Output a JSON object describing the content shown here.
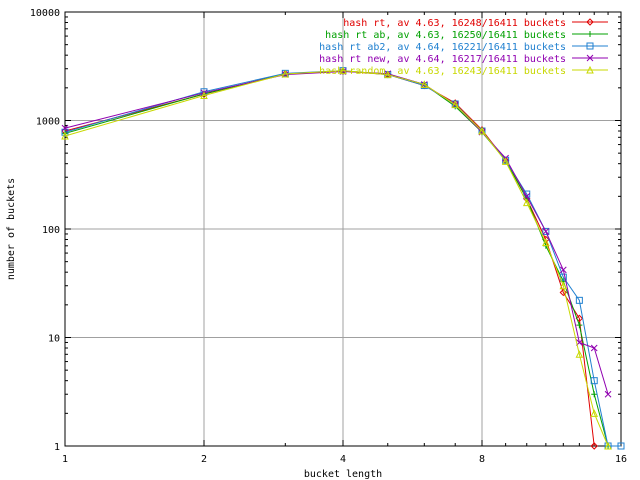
{
  "chart_data": {
    "type": "line",
    "title": "",
    "xlabel": "bucket length",
    "ylabel": "number of buckets",
    "x_scale": "log2",
    "y_scale": "log10",
    "xlim": [
      1,
      16
    ],
    "ylim": [
      1,
      10000
    ],
    "x_ticks": [
      1,
      2,
      4,
      8,
      16
    ],
    "x_tick_labels": [
      "1",
      "2",
      "4",
      "8",
      "16"
    ],
    "y_ticks": [
      1,
      10,
      100,
      1000,
      10000
    ],
    "y_tick_labels": [
      "1",
      "10",
      "100",
      "1000",
      "10000"
    ],
    "grid": true,
    "legend_position": "top-right",
    "series": [
      {
        "name": "hash rt, av 4.63, 16248/16411 buckets",
        "color": "#e00000",
        "marker": "diamond",
        "x": [
          1,
          2,
          3,
          4,
          5,
          6,
          7,
          8,
          9,
          10,
          11,
          12,
          13,
          14
        ],
        "y": [
          800,
          1750,
          2700,
          2850,
          2650,
          2100,
          1450,
          820,
          430,
          190,
          80,
          26,
          15,
          1
        ]
      },
      {
        "name": "hash rt ab, av 4.63, 16250/16411 buckets",
        "color": "#00a000",
        "marker": "plus",
        "x": [
          1,
          2,
          3,
          4,
          5,
          6,
          7,
          8,
          9,
          10,
          11,
          12,
          13,
          14,
          15
        ],
        "y": [
          760,
          1760,
          2680,
          2850,
          2680,
          2150,
          1350,
          780,
          430,
          190,
          70,
          33,
          13,
          3,
          1
        ]
      },
      {
        "name": "hash rt ab2, av 4.64, 16221/16411 buckets",
        "color": "#2080d0",
        "marker": "square",
        "x": [
          1,
          2,
          3,
          4,
          5,
          6,
          7,
          8,
          9,
          10,
          11,
          12,
          13,
          14,
          15,
          16
        ],
        "y": [
          780,
          1840,
          2720,
          2880,
          2650,
          2100,
          1420,
          800,
          430,
          210,
          95,
          36,
          22,
          4,
          1,
          1
        ]
      },
      {
        "name": "hash rt new, av 4.64, 16217/16411 buckets",
        "color": "#9000b0",
        "marker": "cross",
        "x": [
          1,
          2,
          3,
          4,
          5,
          6,
          7,
          8,
          9,
          10,
          11,
          12,
          13,
          14,
          15
        ],
        "y": [
          850,
          1800,
          2650,
          2830,
          2700,
          2150,
          1400,
          780,
          450,
          200,
          95,
          42,
          9,
          8,
          3
        ]
      },
      {
        "name": "hash random, av 4.63, 16243/16411 buckets",
        "color": "#c8d800",
        "marker": "triangle",
        "x": [
          1,
          2,
          3,
          4,
          5,
          6,
          7,
          8,
          9,
          10,
          11,
          12,
          13,
          14,
          15
        ],
        "y": [
          720,
          1700,
          2680,
          2880,
          2650,
          2150,
          1400,
          800,
          420,
          175,
          75,
          30,
          7,
          2,
          1
        ]
      }
    ]
  }
}
